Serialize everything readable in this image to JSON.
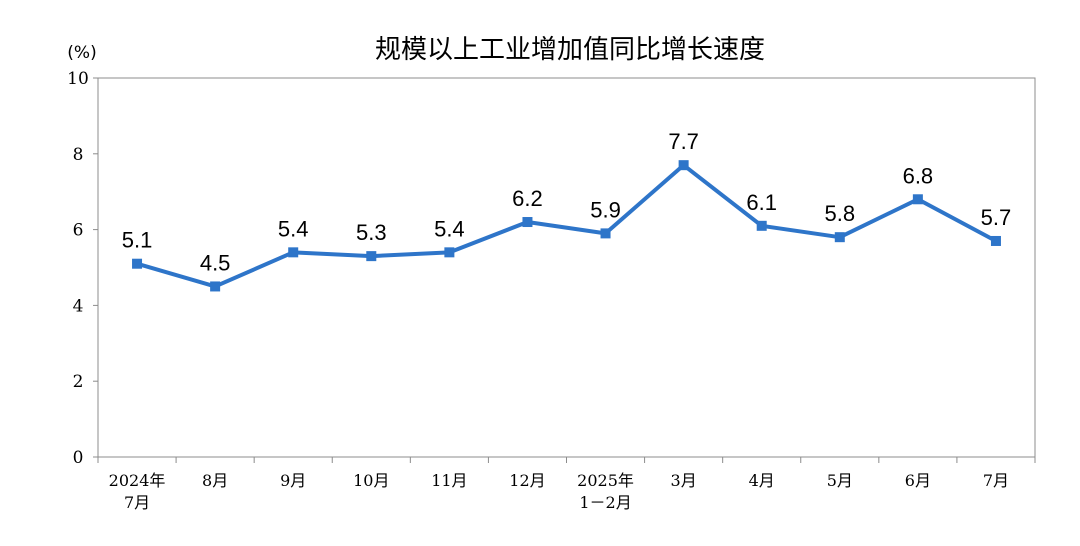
{
  "chart_data": {
    "type": "line",
    "title": "规模以上工业增加值同比增长速度",
    "ylabel": "(%)",
    "ylim": [
      0,
      10
    ],
    "yticks": [
      "0",
      "2",
      "4",
      "6",
      "8",
      "10"
    ],
    "categories": [
      [
        "2024年",
        "7月"
      ],
      [
        "8月"
      ],
      [
        "9月"
      ],
      [
        "10月"
      ],
      [
        "11月"
      ],
      [
        "12月"
      ],
      [
        "2025年",
        "1－2月"
      ],
      [
        "3月"
      ],
      [
        "4月"
      ],
      [
        "5月"
      ],
      [
        "6月"
      ],
      [
        "7月"
      ]
    ],
    "series": [
      {
        "values": [
          5.1,
          4.5,
          5.4,
          5.3,
          5.4,
          6.2,
          5.9,
          7.7,
          6.1,
          5.8,
          6.8,
          5.7
        ],
        "labels": [
          "5.1",
          "4.5",
          "5.4",
          "5.3",
          "5.4",
          "6.2",
          "5.9",
          "7.7",
          "6.1",
          "5.8",
          "6.8",
          "5.7"
        ],
        "color": "#2e75c9"
      }
    ],
    "grid": false,
    "legend": "none"
  }
}
